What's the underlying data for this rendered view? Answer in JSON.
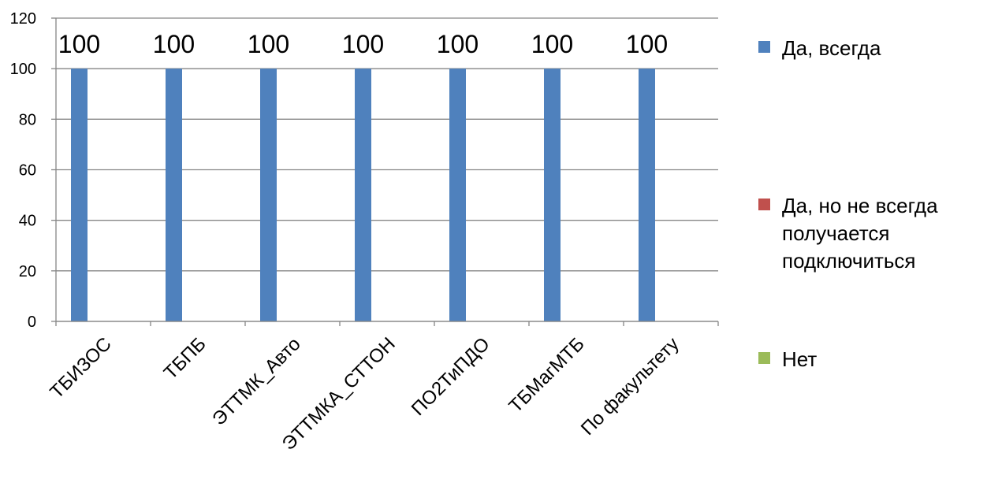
{
  "chart_data": {
    "type": "bar",
    "categories": [
      "ТБИЗОС",
      "ТБПБ",
      "ЭТТМК_Авто",
      "ЭТТМКА_СТТОН",
      "ПО2ТиПДО",
      "ТБМагМТБ",
      "По факультету"
    ],
    "series": [
      {
        "name": "Да, всегда",
        "color": "#4F81BD",
        "values": [
          100,
          100,
          100,
          100,
          100,
          100,
          100
        ],
        "data_labels": [
          "100",
          "100",
          "100",
          "100",
          "100",
          "100",
          "100"
        ]
      },
      {
        "name": "Да, но не всегда получается подключиться",
        "name_lines": [
          "Да, но не всегда",
          "получается",
          "подключиться"
        ],
        "color": "#C0504D",
        "values": [
          0,
          0,
          0,
          0,
          0,
          0,
          0
        ],
        "data_labels": []
      },
      {
        "name": "Нет",
        "color": "#9BBB59",
        "values": [
          0,
          0,
          0,
          0,
          0,
          0,
          0
        ],
        "data_labels": []
      }
    ],
    "ylim": [
      0,
      120
    ],
    "y_ticks": [
      "0",
      "20",
      "40",
      "60",
      "80",
      "100",
      "120"
    ],
    "y_tick_values": [
      0,
      20,
      40,
      60,
      80,
      100,
      120
    ],
    "grid": true,
    "legend_position": "right",
    "title": "",
    "xlabel": "",
    "ylabel": "",
    "gridline_color": "#868686",
    "axis_color": "#868686"
  }
}
